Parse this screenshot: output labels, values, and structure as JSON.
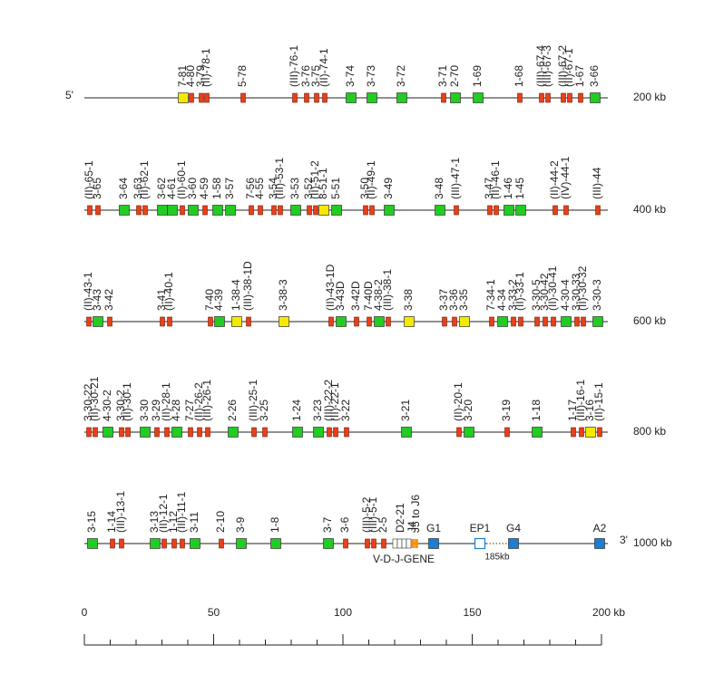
{
  "five_prime": "5'",
  "three_prime": "3'",
  "vdj_label": "V-D-J-GENE",
  "gap_label": "185kb",
  "rows": [
    {
      "kb_label": "200 kb",
      "genes": [
        {
          "label": "7-81",
          "color": "#f5e900"
        },
        {
          "label": "4-80",
          "color": "#e8401c"
        },
        {
          "label": "3-79",
          "color": "#e8401c"
        },
        {
          "label": "(II)-78-1",
          "color": "#e8401c"
        },
        {
          "label": "5-78",
          "color": "#e8401c"
        },
        {
          "label": "(III)-76-1",
          "color": "#e8401c"
        },
        {
          "label": "3-76",
          "color": "#e8401c"
        },
        {
          "label": "3-75",
          "color": "#e8401c"
        },
        {
          "label": "(II)-74-1",
          "color": "#e8401c"
        },
        {
          "label": "3-74",
          "color": "#22cc22"
        },
        {
          "label": "3-73",
          "color": "#22cc22"
        },
        {
          "label": "3-72",
          "color": "#22cc22"
        },
        {
          "label": "3-71",
          "color": "#e8401c"
        },
        {
          "label": "2-70",
          "color": "#22cc22"
        },
        {
          "label": "1-69",
          "color": "#22cc22"
        },
        {
          "label": "1-68",
          "color": "#e8401c"
        },
        {
          "label": "(III)-67-4",
          "color": "#e8401c"
        },
        {
          "label": "(III)-67-3",
          "color": "#e8401c"
        },
        {
          "label": "(III)-67-2",
          "color": "#e8401c"
        },
        {
          "label": "(II)-67-1",
          "color": "#e8401c"
        },
        {
          "label": "1-67",
          "color": "#e8401c"
        },
        {
          "label": "3-66",
          "color": "#22cc22"
        }
      ]
    },
    {
      "kb_label": "400 kb",
      "genes": [
        {
          "label": "(II)-65-1",
          "color": "#e8401c"
        },
        {
          "label": "3-65",
          "color": "#e8401c"
        },
        {
          "label": "3-64",
          "color": "#22cc22"
        },
        {
          "label": "3-63",
          "color": "#e8401c"
        },
        {
          "label": "(II)-62-1",
          "color": "#e8401c"
        },
        {
          "label": "3-62",
          "color": "#22cc22"
        },
        {
          "label": "4-61",
          "color": "#22cc22"
        },
        {
          "label": "(II)-60-1",
          "color": "#e8401c"
        },
        {
          "label": "3-60",
          "color": "#22cc22"
        },
        {
          "label": "4-59",
          "color": "#e8401c"
        },
        {
          "label": "1-58",
          "color": "#22cc22"
        },
        {
          "label": "3-57",
          "color": "#22cc22"
        },
        {
          "label": "7-56",
          "color": "#e8401c"
        },
        {
          "label": "4-55",
          "color": "#e8401c"
        },
        {
          "label": "3-54",
          "color": "#e8401c"
        },
        {
          "label": "(III)-53-1",
          "color": "#e8401c"
        },
        {
          "label": "3-53",
          "color": "#22cc22"
        },
        {
          "label": "3-52",
          "color": "#e8401c"
        },
        {
          "label": "(II)-51-2",
          "color": "#e8401c"
        },
        {
          "label": "8-51-1",
          "color": "#f5e900"
        },
        {
          "label": "5-51",
          "color": "#22cc22"
        },
        {
          "label": "3-50",
          "color": "#e8401c"
        },
        {
          "label": "(II)-49-1",
          "color": "#e8401c"
        },
        {
          "label": "3-49",
          "color": "#22cc22"
        },
        {
          "label": "3-48",
          "color": "#22cc22"
        },
        {
          "label": "(III)-47-1",
          "color": "#e8401c"
        },
        {
          "label": "3-47",
          "color": "#e8401c"
        },
        {
          "label": "(II)-46-1",
          "color": "#e8401c"
        },
        {
          "label": "1-46",
          "color": "#22cc22"
        },
        {
          "label": "1-45",
          "color": "#22cc22"
        },
        {
          "label": "(II)-44-2",
          "color": "#e8401c"
        },
        {
          "label": "(IV)-44-1",
          "color": "#e8401c"
        },
        {
          "label": "(III)-44",
          "color": "#e8401c"
        }
      ]
    },
    {
      "kb_label": "600 kb",
      "genes": [
        {
          "label": "(II)-43-1",
          "color": "#e8401c"
        },
        {
          "label": "3-43",
          "color": "#22cc22"
        },
        {
          "label": "3-42",
          "color": "#e8401c"
        },
        {
          "label": "3-41",
          "color": "#e8401c"
        },
        {
          "label": "(II)-40-1",
          "color": "#e8401c"
        },
        {
          "label": "7-40",
          "color": "#e8401c"
        },
        {
          "label": "4-39",
          "color": "#22cc22"
        },
        {
          "label": "1-38-4",
          "color": "#f5e900"
        },
        {
          "label": "(III)-38-1D",
          "color": "#e8401c"
        },
        {
          "label": "3-38-3",
          "color": "#f5e900"
        },
        {
          "label": "(II)-43-1D",
          "color": "#e8401c"
        },
        {
          "label": "3-43D",
          "color": "#22cc22"
        },
        {
          "label": "3-42D",
          "color": "#e8401c"
        },
        {
          "label": "7-40D",
          "color": "#e8401c"
        },
        {
          "label": "4-38-2",
          "color": "#22cc22"
        },
        {
          "label": "(III)-38-1",
          "color": "#e8401c"
        },
        {
          "label": "3-38",
          "color": "#f5e900"
        },
        {
          "label": "3-37",
          "color": "#e8401c"
        },
        {
          "label": "3-36",
          "color": "#e8401c"
        },
        {
          "label": "3-35",
          "color": "#f5e900"
        },
        {
          "label": "7-34-1",
          "color": "#e8401c"
        },
        {
          "label": "4-34",
          "color": "#22cc22"
        },
        {
          "label": "3-33-2",
          "color": "#e8401c"
        },
        {
          "label": "(II)-33-1",
          "color": "#e8401c"
        },
        {
          "label": "3-30-5",
          "color": "#e8401c"
        },
        {
          "label": "3-30-42",
          "color": "#e8401c"
        },
        {
          "label": "(II)-30-41",
          "color": "#e8401c"
        },
        {
          "label": "4-30-4",
          "color": "#22cc22"
        },
        {
          "label": "3-30-33",
          "color": "#e8401c"
        },
        {
          "label": "(II)-30-32",
          "color": "#e8401c"
        },
        {
          "label": "3-30-3",
          "color": "#22cc22"
        }
      ]
    },
    {
      "kb_label": "800 kb",
      "genes": [
        {
          "label": "3-30-22",
          "color": "#e8401c"
        },
        {
          "label": "(II)-30-21",
          "color": "#e8401c"
        },
        {
          "label": "4-30-2",
          "color": "#22cc22"
        },
        {
          "label": "3-30-2",
          "color": "#e8401c"
        },
        {
          "label": "(II)-30-1",
          "color": "#e8401c"
        },
        {
          "label": "3-30",
          "color": "#22cc22"
        },
        {
          "label": "3-29",
          "color": "#e8401c"
        },
        {
          "label": "(II)-28-1",
          "color": "#e8401c"
        },
        {
          "label": "4-28",
          "color": "#22cc22"
        },
        {
          "label": "7-27",
          "color": "#e8401c"
        },
        {
          "label": "(II)-26-2",
          "color": "#e8401c"
        },
        {
          "label": "(III)-26-1",
          "color": "#e8401c"
        },
        {
          "label": "2-26",
          "color": "#22cc22"
        },
        {
          "label": "(III)-25-1",
          "color": "#e8401c"
        },
        {
          "label": "3-25",
          "color": "#e8401c"
        },
        {
          "label": "1-24",
          "color": "#22cc22"
        },
        {
          "label": "3-23",
          "color": "#22cc22"
        },
        {
          "label": "(III)-22-2",
          "color": "#e8401c"
        },
        {
          "label": "(II)-22-1",
          "color": "#e8401c"
        },
        {
          "label": "3-22",
          "color": "#e8401c"
        },
        {
          "label": "3-21",
          "color": "#22cc22"
        },
        {
          "label": "(II)-20-1",
          "color": "#e8401c"
        },
        {
          "label": "3-20",
          "color": "#22cc22"
        },
        {
          "label": "3-19",
          "color": "#e8401c"
        },
        {
          "label": "1-18",
          "color": "#22cc22"
        },
        {
          "label": "1-17",
          "color": "#e8401c"
        },
        {
          "label": "(III)-16-1",
          "color": "#e8401c"
        },
        {
          "label": "3-16",
          "color": "#f5e900"
        },
        {
          "label": "(II)-15-1",
          "color": "#e8401c"
        }
      ]
    },
    {
      "kb_label": "1000 kb",
      "genes": [
        {
          "label": "3-15",
          "color": "#22cc22"
        },
        {
          "label": "1-14",
          "color": "#e8401c"
        },
        {
          "label": "(III)-13-1",
          "color": "#e8401c"
        },
        {
          "label": "3-13",
          "color": "#22cc22"
        },
        {
          "label": "(II)-12-1",
          "color": "#e8401c"
        },
        {
          "label": "1-12",
          "color": "#e8401c"
        },
        {
          "label": "(III)-11-1",
          "color": "#e8401c"
        },
        {
          "label": "3-11",
          "color": "#22cc22"
        },
        {
          "label": "2-10",
          "color": "#e8401c"
        },
        {
          "label": "3-9",
          "color": "#22cc22"
        },
        {
          "label": "1-8",
          "color": "#22cc22"
        },
        {
          "label": "3-7",
          "color": "#22cc22"
        },
        {
          "label": "3-6",
          "color": "#e8401c"
        },
        {
          "label": "(III)-5-2",
          "color": "#e8401c"
        },
        {
          "label": "(III)-5-1",
          "color": "#e8401c"
        },
        {
          "label": "2-5",
          "color": "#e8401c"
        },
        {
          "label": "D2-21",
          "color": "#ffffff"
        },
        {
          "label": "J4",
          "color": "#ff8c00"
        },
        {
          "label": "J5 to J6",
          "color": "#ff8c00"
        },
        {
          "label": "G1",
          "color": "#1a7fd4"
        },
        {
          "label": "EP1",
          "color": "#ffffff"
        },
        {
          "label": "G4",
          "color": "#1a7fd4"
        },
        {
          "label": "A2",
          "color": "#1a7fd4"
        }
      ]
    }
  ],
  "scale": {
    "ticks": [
      0,
      50,
      100,
      150,
      {
        "value": 200,
        "label": "200 kb"
      }
    ],
    "range": [
      0,
      200
    ]
  }
}
